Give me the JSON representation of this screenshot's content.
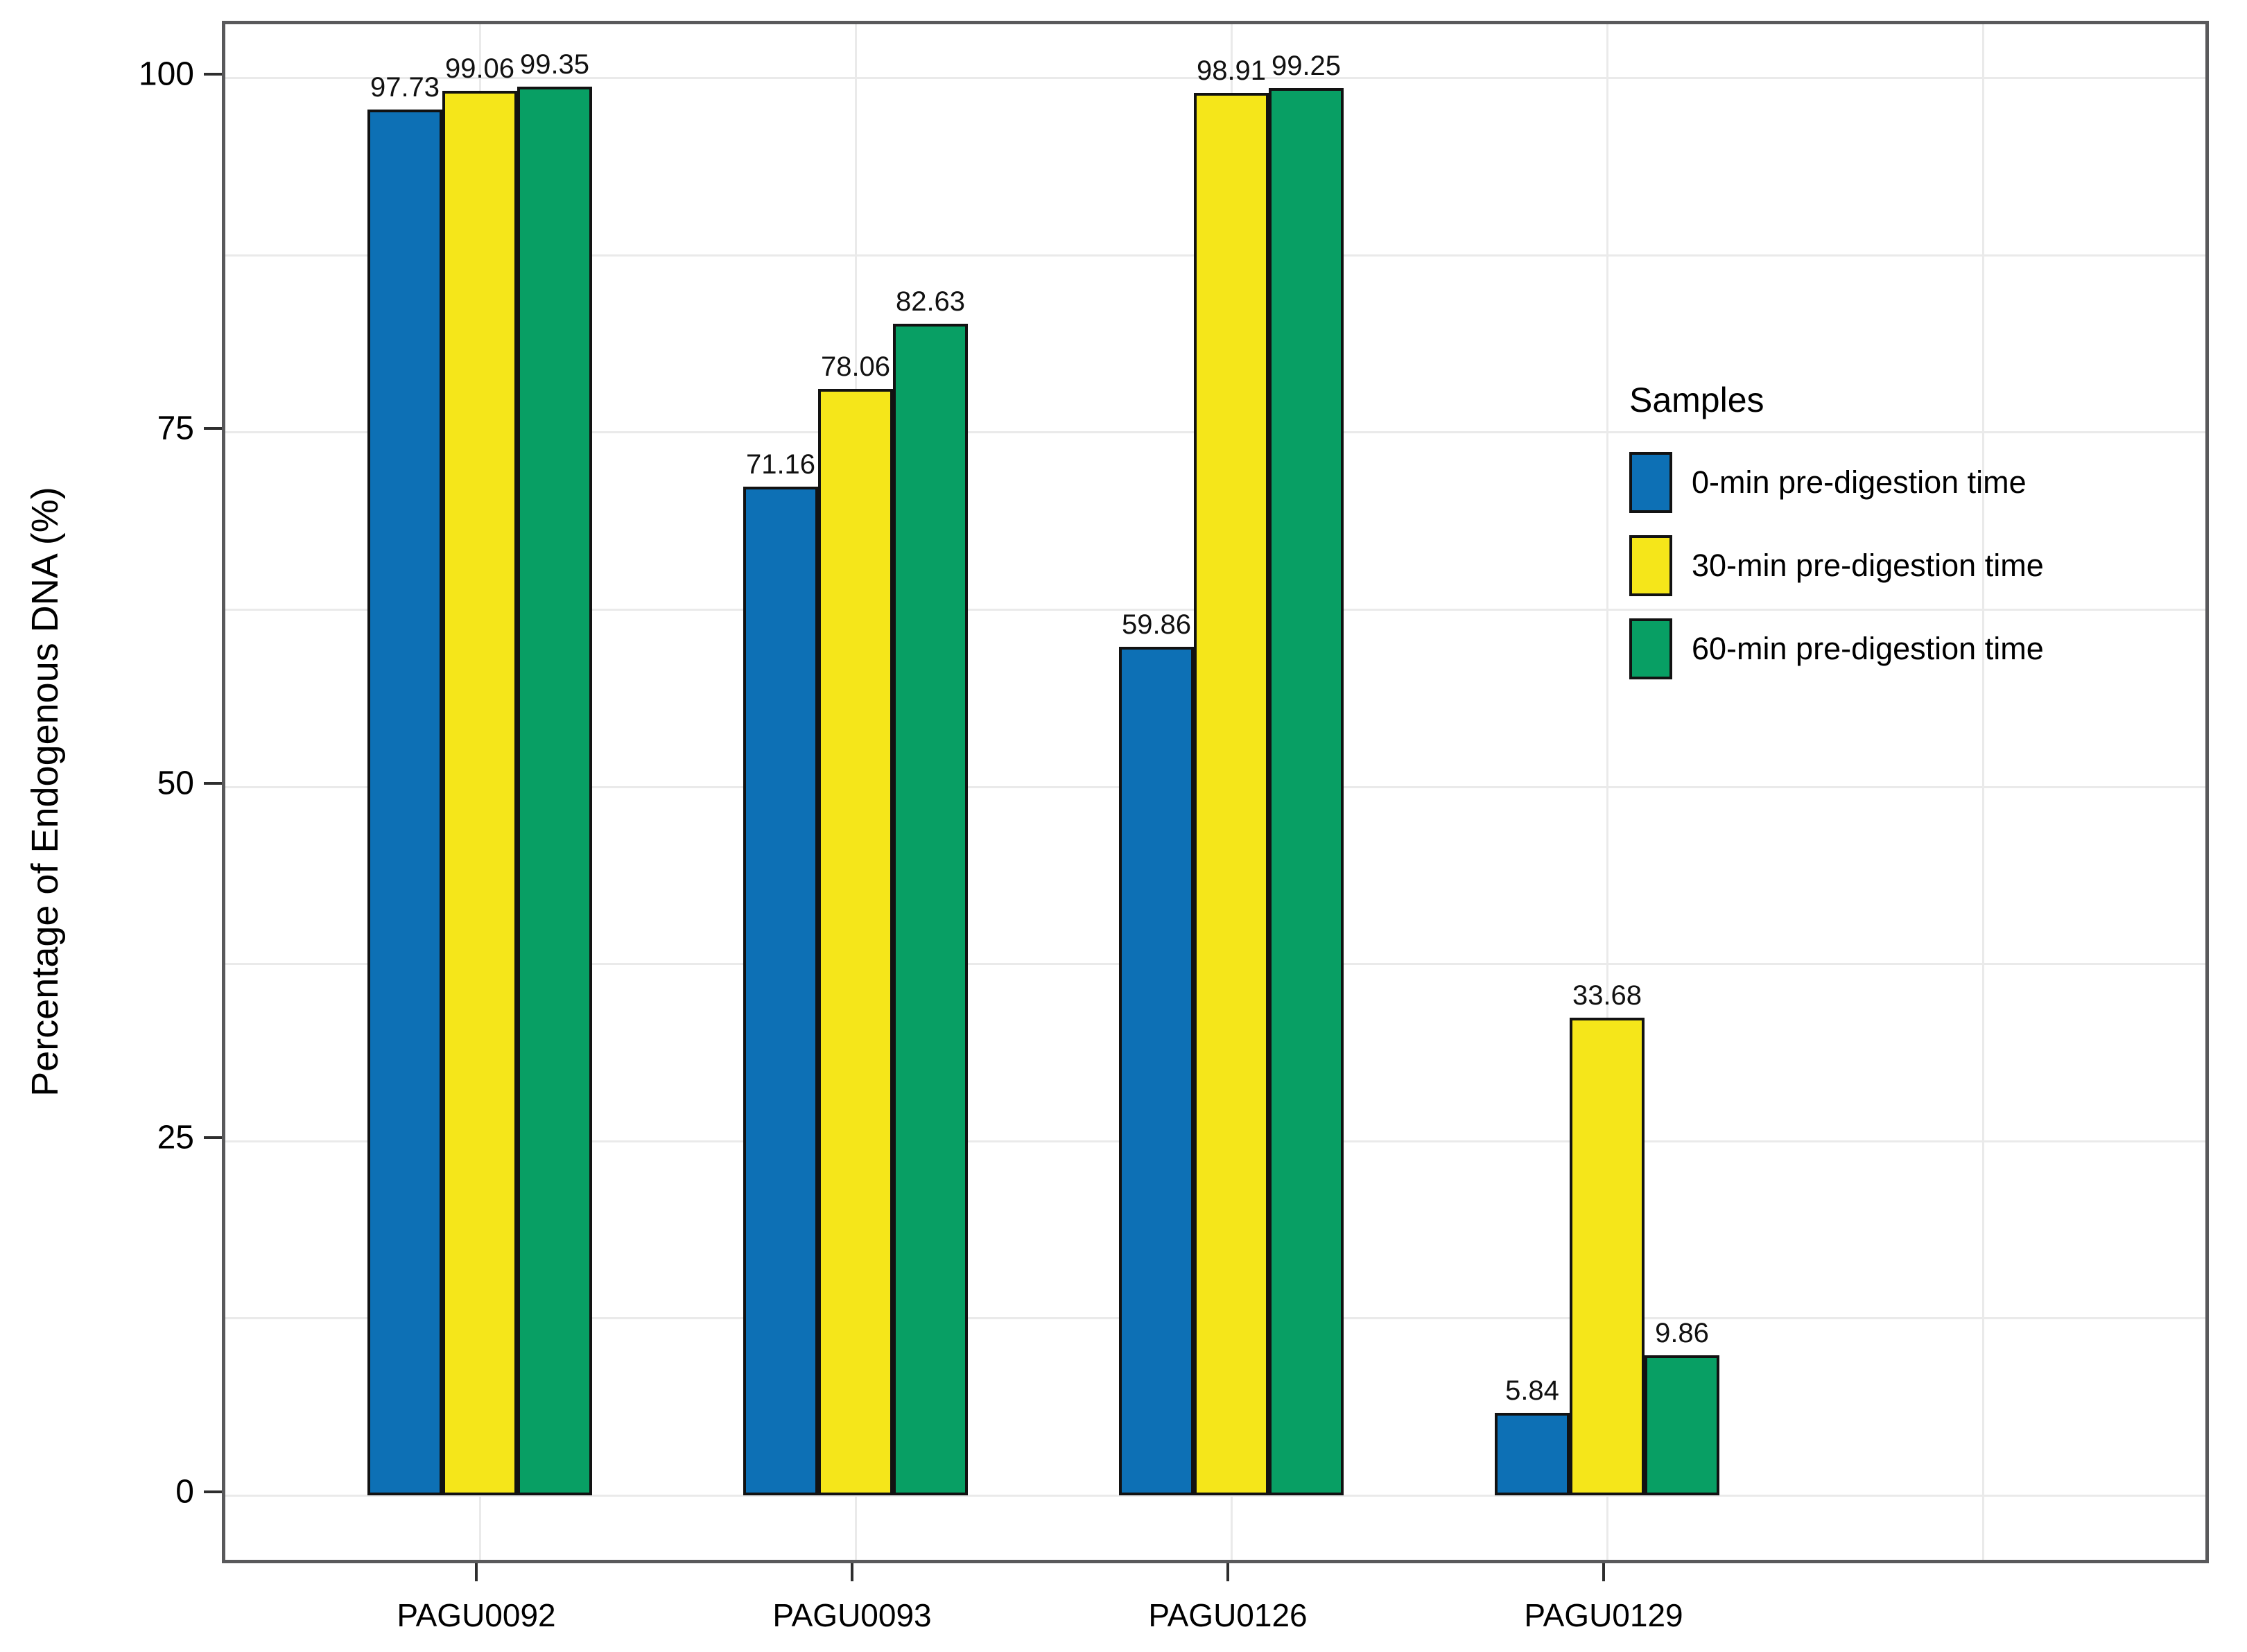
{
  "chart_data": {
    "type": "bar",
    "title": "",
    "categories": [
      "PAGU0092",
      "PAGU0093",
      "PAGU0126",
      "PAGU0129"
    ],
    "series": [
      {
        "name": "0-min pre-digestion time",
        "color": "#0d70b5",
        "values": [
          97.73,
          71.16,
          59.86,
          5.84
        ]
      },
      {
        "name": "30-min pre-digestion time",
        "color": "#f5e61a",
        "values": [
          99.06,
          78.06,
          98.91,
          33.68
        ]
      },
      {
        "name": "60-min pre-digestion time",
        "color": "#089f64",
        "values": [
          99.35,
          82.63,
          99.25,
          9.86
        ]
      }
    ],
    "xlabel": "",
    "ylabel": "Percentage of Endogenous DNA (%)",
    "ylim": [
      0,
      100
    ],
    "yticks": [
      0,
      25,
      50,
      75,
      100
    ],
    "bar_value_labels": true,
    "grid": {
      "horizontal": "major every 25 plus minor every 12.5, light gray",
      "vertical": "light gray at each category position plus one beyond last category"
    },
    "legend": {
      "title": "Samples",
      "position": "inside-right"
    },
    "colors": {
      "grid": "#eaeaea",
      "panel_border": "#59595b",
      "bar_border": "#121212",
      "text": "#000000"
    }
  }
}
